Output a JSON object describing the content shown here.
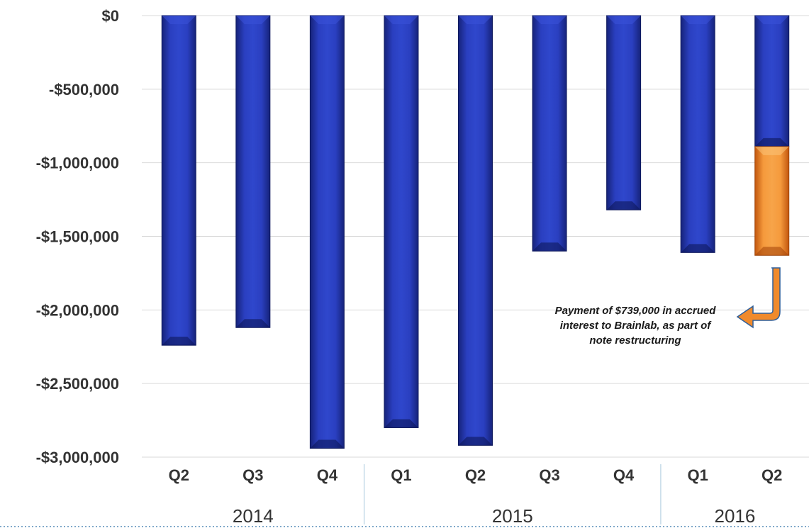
{
  "chart_data": {
    "type": "bar",
    "stacked": true,
    "categories": [
      "Q2",
      "Q3",
      "Q4",
      "Q1",
      "Q2",
      "Q3",
      "Q4",
      "Q1",
      "Q2"
    ],
    "groups": [
      {
        "label": "2014",
        "count": 3
      },
      {
        "label": "2015",
        "count": 4
      },
      {
        "label": "2016",
        "count": 2
      }
    ],
    "series": [
      {
        "values": [
          -2240000,
          -2120000,
          -2940000,
          -2800000,
          -2920000,
          -1600000,
          -1320000,
          -1610000,
          -890000
        ],
        "color": "#1f33a5"
      },
      {
        "values": [
          0,
          0,
          0,
          0,
          0,
          0,
          0,
          0,
          -739000
        ],
        "color": "#f08a2c"
      }
    ],
    "yticks": [
      "$0",
      "-$500,000",
      "-$1,000,000",
      "-$1,500,000",
      "-$2,000,000",
      "-$2,500,000",
      "-$3,000,000"
    ],
    "ytick_values": [
      0,
      -500000,
      -1000000,
      -1500000,
      -2000000,
      -2500000,
      -3000000
    ],
    "ylim": [
      -3000000,
      0
    ],
    "grid": true,
    "annotation": {
      "text": "Payment of $739,000 in accrued interest to Brainlab, as part of note restructuring",
      "lines": [
        "Payment of $739,000 in accrued",
        "interest to Brainlab, as part of",
        "note restructuring"
      ],
      "arrow_color": "#f08a2c"
    }
  }
}
